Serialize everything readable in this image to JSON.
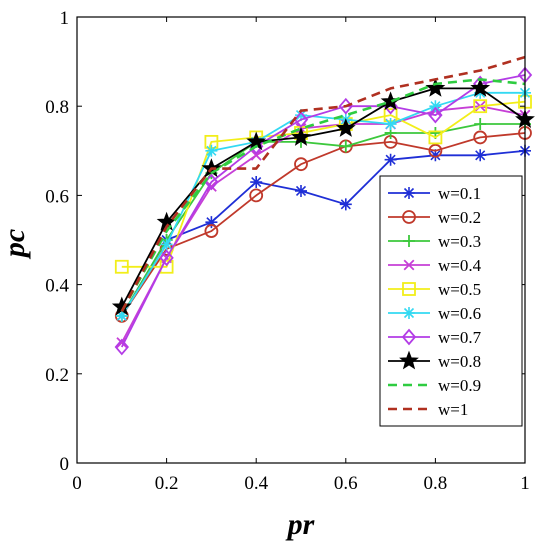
{
  "chart_data": {
    "type": "line",
    "xlabel": "pr",
    "ylabel": "pc",
    "xlim": [
      0,
      1
    ],
    "ylim": [
      0,
      1
    ],
    "xticks": [
      "0",
      "0.2",
      "0.4",
      "0.6",
      "0.8",
      "1"
    ],
    "yticks": [
      "0",
      "0.2",
      "0.4",
      "0.6",
      "0.8",
      "1"
    ],
    "grid": false,
    "legend_position": "bottom-right",
    "x": [
      0.1,
      0.2,
      0.3,
      0.4,
      0.5,
      0.6,
      0.7,
      0.8,
      0.9,
      1.0
    ],
    "series": [
      {
        "name": "w=0.1",
        "color": "#1f2fd6",
        "marker": "asterisk",
        "dash": "solid",
        "values": [
          0.33,
          0.5,
          0.54,
          0.63,
          0.61,
          0.58,
          0.68,
          0.69,
          0.69,
          0.7
        ]
      },
      {
        "name": "w=0.2",
        "color": "#c0392b",
        "marker": "circle",
        "dash": "solid",
        "values": [
          0.33,
          0.48,
          0.52,
          0.6,
          0.67,
          0.71,
          0.72,
          0.7,
          0.73,
          0.74
        ]
      },
      {
        "name": "w=0.3",
        "color": "#3cc83c",
        "marker": "plus",
        "dash": "solid",
        "values": [
          0.33,
          0.5,
          0.65,
          0.72,
          0.72,
          0.71,
          0.74,
          0.74,
          0.76,
          0.76
        ]
      },
      {
        "name": "w=0.4",
        "color": "#c63fd6",
        "marker": "cross",
        "dash": "solid",
        "values": [
          0.27,
          0.46,
          0.62,
          0.69,
          0.75,
          0.76,
          0.76,
          0.79,
          0.8,
          0.78
        ]
      },
      {
        "name": "w=0.5",
        "color": "#f2ee1a",
        "marker": "square",
        "dash": "solid",
        "values": [
          0.44,
          0.44,
          0.72,
          0.73,
          0.74,
          0.76,
          0.78,
          0.73,
          0.8,
          0.81
        ]
      },
      {
        "name": "w=0.6",
        "color": "#33d9f2",
        "marker": "asterisk",
        "dash": "solid",
        "values": [
          0.33,
          0.49,
          0.7,
          0.72,
          0.78,
          0.77,
          0.76,
          0.8,
          0.83,
          0.83
        ]
      },
      {
        "name": "w=0.7",
        "color": "#b33ce6",
        "marker": "diamond",
        "dash": "solid",
        "values": [
          0.26,
          0.46,
          0.63,
          0.71,
          0.77,
          0.8,
          0.8,
          0.78,
          0.85,
          0.87
        ]
      },
      {
        "name": "w=0.8",
        "color": "#000000",
        "marker": "star",
        "dash": "solid",
        "values": [
          0.35,
          0.54,
          0.66,
          0.72,
          0.73,
          0.75,
          0.81,
          0.84,
          0.84,
          0.77
        ]
      },
      {
        "name": "w=0.9",
        "color": "#2ecc40",
        "marker": "none",
        "dash": "dashed",
        "values": [
          0.34,
          0.52,
          0.65,
          0.71,
          0.75,
          0.78,
          0.81,
          0.85,
          0.86,
          0.85
        ]
      },
      {
        "name": "w=1",
        "color": "#b03020",
        "marker": "none",
        "dash": "dashed",
        "values": [
          0.34,
          0.53,
          0.66,
          0.66,
          0.79,
          0.8,
          0.84,
          0.86,
          0.88,
          0.91
        ]
      }
    ]
  }
}
